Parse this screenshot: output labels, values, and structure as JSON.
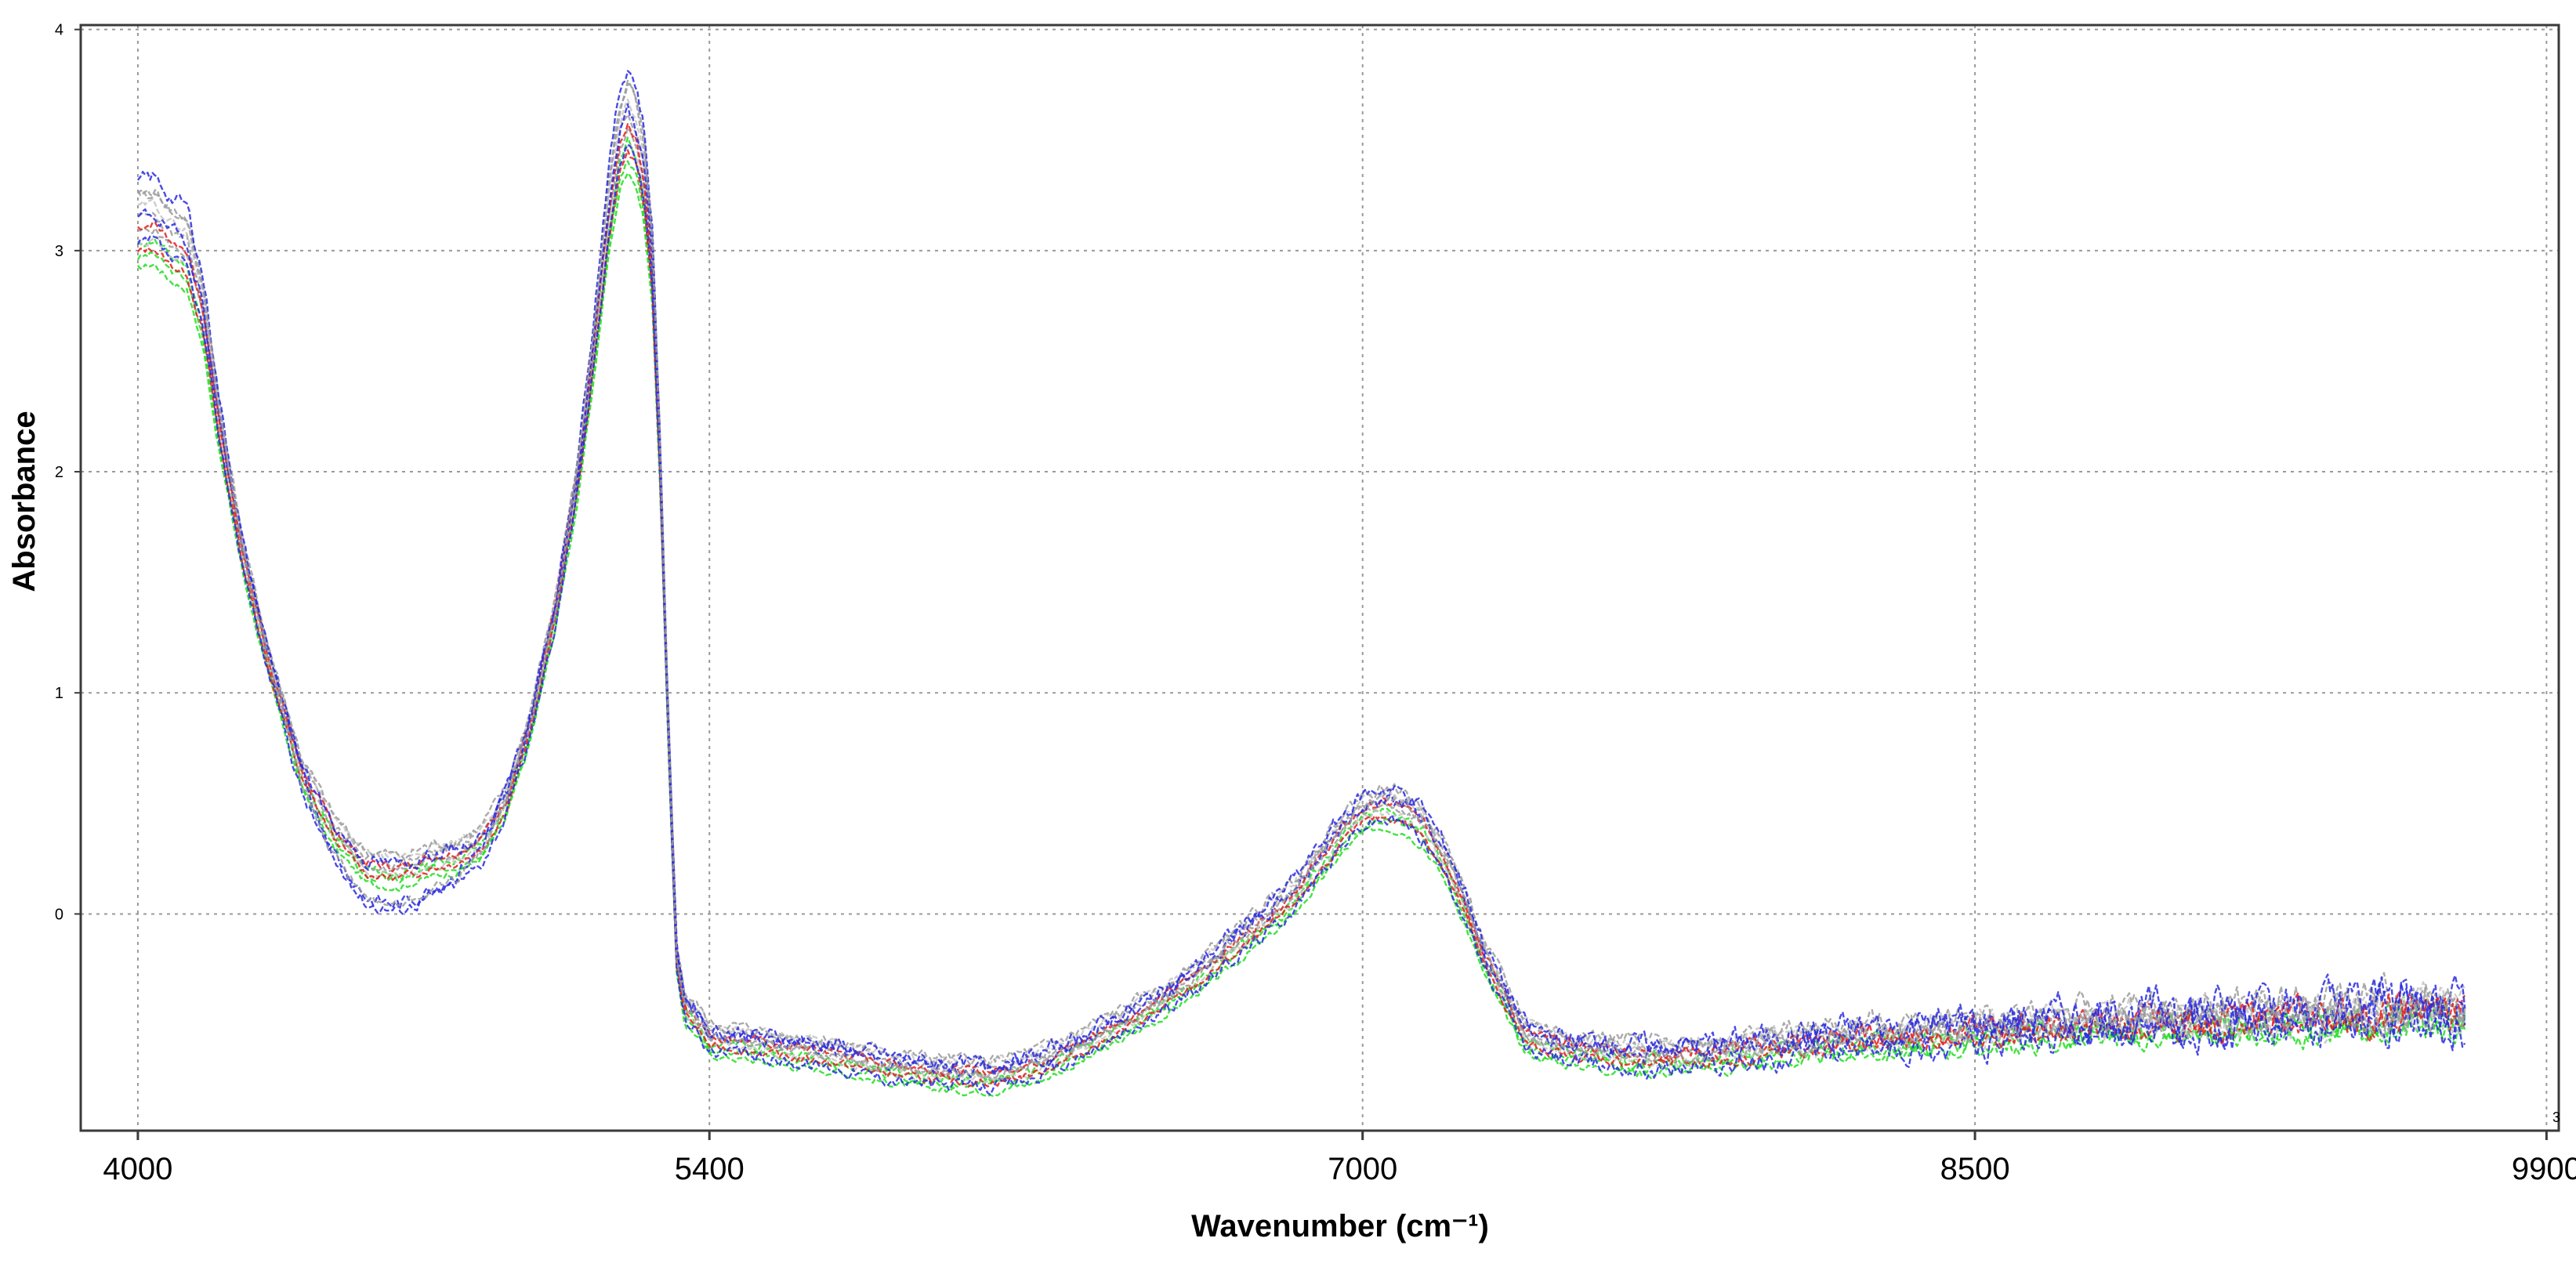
{
  "chart_data": {
    "type": "line",
    "title": "",
    "xlabel": "Wavenumber (cm⁻¹)",
    "ylabel": "Absorbance",
    "xlim": [
      3860,
      9930
    ],
    "ylim": [
      -0.98,
      4.02
    ],
    "x_ticks": [
      4000,
      5400,
      7000,
      8500,
      9900
    ],
    "y_ticks": [
      0,
      1,
      2,
      3,
      4
    ],
    "grid": true,
    "legend": "none",
    "corner_mark": "3",
    "colors": {
      "axis": "#3a3a3a",
      "grid": "#9a9a9a",
      "text": "#000000",
      "green": "#22dd22",
      "blue": "#2a2ae0",
      "red": "#e02020",
      "gray": "#9b9b9b",
      "lightgray": "#c4c4c4"
    },
    "base_curve": {
      "x": [
        4000,
        4040,
        4080,
        4120,
        4160,
        4200,
        4260,
        4320,
        4400,
        4480,
        4560,
        4640,
        4720,
        4780,
        4840,
        4900,
        4960,
        5020,
        5080,
        5120,
        5150,
        5180,
        5200,
        5220,
        5240,
        5260,
        5280,
        5300,
        5320,
        5340,
        5360,
        5380,
        5400,
        5450,
        5500,
        5600,
        5700,
        5800,
        5900,
        6000,
        6100,
        6200,
        6300,
        6400,
        6500,
        6600,
        6700,
        6800,
        6850,
        6900,
        6950,
        7000,
        7050,
        7100,
        7150,
        7200,
        7250,
        7300,
        7400,
        7500,
        7600,
        7700,
        7800,
        7900,
        8000,
        8100,
        8200,
        8300,
        8400,
        8500,
        8600,
        8700,
        8800,
        8900,
        9000,
        9100,
        9200,
        9300,
        9400,
        9500,
        9600,
        9700
      ],
      "y": [
        3.08,
        3.1,
        3.02,
        2.98,
        2.7,
        2.2,
        1.6,
        1.15,
        0.65,
        0.38,
        0.22,
        0.2,
        0.25,
        0.27,
        0.33,
        0.5,
        0.85,
        1.35,
        2.0,
        2.6,
        3.1,
        3.45,
        3.55,
        3.48,
        3.3,
        2.9,
        2.0,
        0.8,
        -0.2,
        -0.42,
        -0.45,
        -0.5,
        -0.56,
        -0.57,
        -0.58,
        -0.61,
        -0.63,
        -0.67,
        -0.7,
        -0.72,
        -0.72,
        -0.68,
        -0.6,
        -0.5,
        -0.4,
        -0.27,
        -0.12,
        0.03,
        0.13,
        0.25,
        0.37,
        0.46,
        0.49,
        0.47,
        0.4,
        0.25,
        0.05,
        -0.2,
        -0.55,
        -0.6,
        -0.62,
        -0.64,
        -0.63,
        -0.62,
        -0.6,
        -0.58,
        -0.56,
        -0.55,
        -0.54,
        -0.53,
        -0.52,
        -0.51,
        -0.5,
        -0.49,
        -0.49,
        -0.48,
        -0.47,
        -0.46,
        -0.46,
        -0.45,
        -0.44,
        -0.44
      ]
    },
    "series": [
      {
        "color": "green",
        "offset": -0.05,
        "peak_scale": 0.96,
        "noise": 0.015,
        "seed": 3
      },
      {
        "color": "green",
        "offset": -0.02,
        "peak_scale": 0.98,
        "noise": 0.018,
        "seed": 11
      },
      {
        "color": "green",
        "offset": -0.08,
        "peak_scale": 0.95,
        "noise": 0.014,
        "seed": 17
      },
      {
        "color": "gray",
        "offset": 0.0,
        "peak_scale": 1.0,
        "noise": 0.016,
        "seed": 5
      },
      {
        "color": "gray",
        "offset": 0.03,
        "peak_scale": 1.02,
        "noise": 0.02,
        "seed": 23
      },
      {
        "color": "lightgray",
        "offset": 0.05,
        "peak_scale": 1.04,
        "noise": 0.018,
        "seed": 29
      },
      {
        "color": "lightgray",
        "offset": -0.03,
        "peak_scale": 0.99,
        "noise": 0.017,
        "seed": 31
      },
      {
        "color": "gray",
        "offset": 0.06,
        "peak_scale": 1.07,
        "noise": 0.022,
        "seed": 41
      },
      {
        "color": "red",
        "offset": 0.01,
        "peak_scale": 1.01,
        "noise": 0.018,
        "seed": 7
      },
      {
        "color": "red",
        "offset": -0.04,
        "peak_scale": 0.97,
        "noise": 0.016,
        "seed": 13
      },
      {
        "color": "blue",
        "offset": 0.02,
        "peak_scale": 1.03,
        "noise": 0.028,
        "seed": 19
      },
      {
        "color": "blue",
        "offset": -0.06,
        "peak_scale": 1.0,
        "noise": 0.025,
        "seed": 37,
        "valley_dip": -0.12
      },
      {
        "color": "blue",
        "offset": 0.04,
        "peak_scale": 1.12,
        "noise": 0.03,
        "seed": 43,
        "valley_dip": -0.2
      },
      {
        "color": "gray",
        "offset": 0.0,
        "peak_scale": 1.1,
        "noise": 0.02,
        "seed": 47,
        "valley_dip": -0.16
      }
    ]
  }
}
